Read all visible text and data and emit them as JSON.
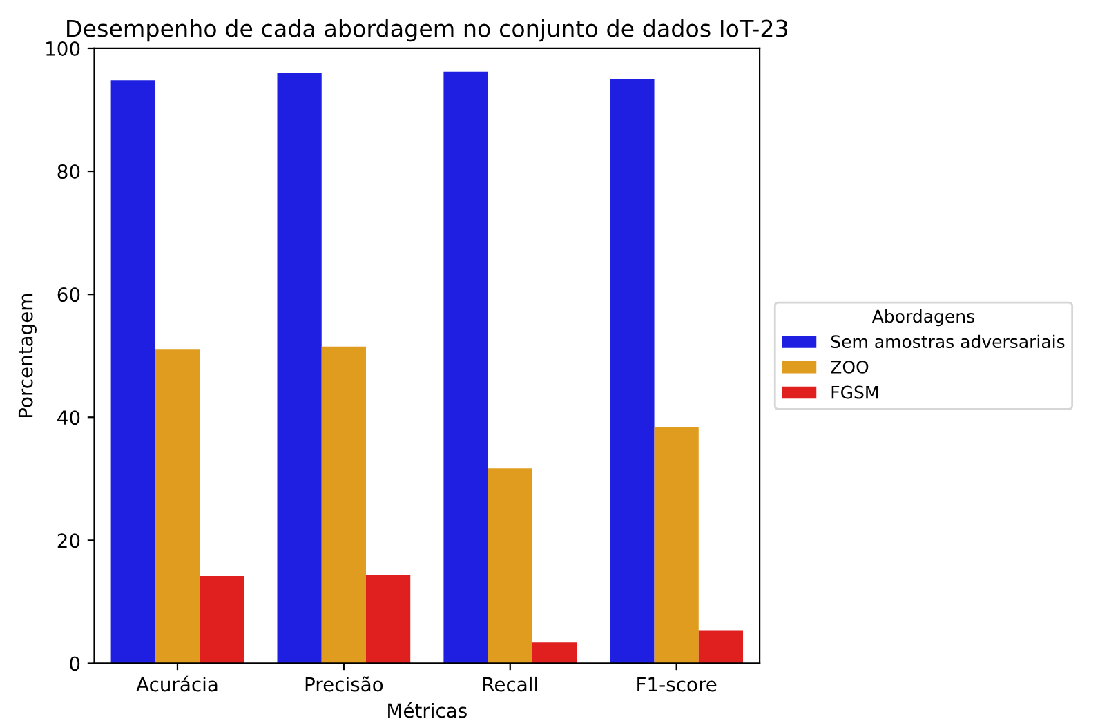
{
  "chart_data": {
    "type": "bar",
    "title": "Desempenho de cada abordagem no conjunto de dados IoT-23",
    "xlabel": "Métricas",
    "ylabel": "Porcentagem",
    "legend_title": "Abordagens",
    "categories": [
      "Acurácia",
      "Precisão",
      "Recall",
      "F1-score"
    ],
    "series": [
      {
        "name": "Sem amostras adversariais",
        "color": "#1f1fe1",
        "values": [
          94.8,
          96.0,
          96.2,
          95.0
        ]
      },
      {
        "name": "ZOO",
        "color": "#e09c1f",
        "values": [
          51.0,
          51.5,
          31.7,
          38.4
        ]
      },
      {
        "name": "FGSM",
        "color": "#e01f1f",
        "values": [
          14.2,
          14.4,
          3.4,
          5.4
        ]
      }
    ],
    "ylim": [
      0,
      100
    ],
    "yticks": [
      0,
      20,
      40,
      60,
      80,
      100
    ],
    "grid": false,
    "legend": "right"
  }
}
